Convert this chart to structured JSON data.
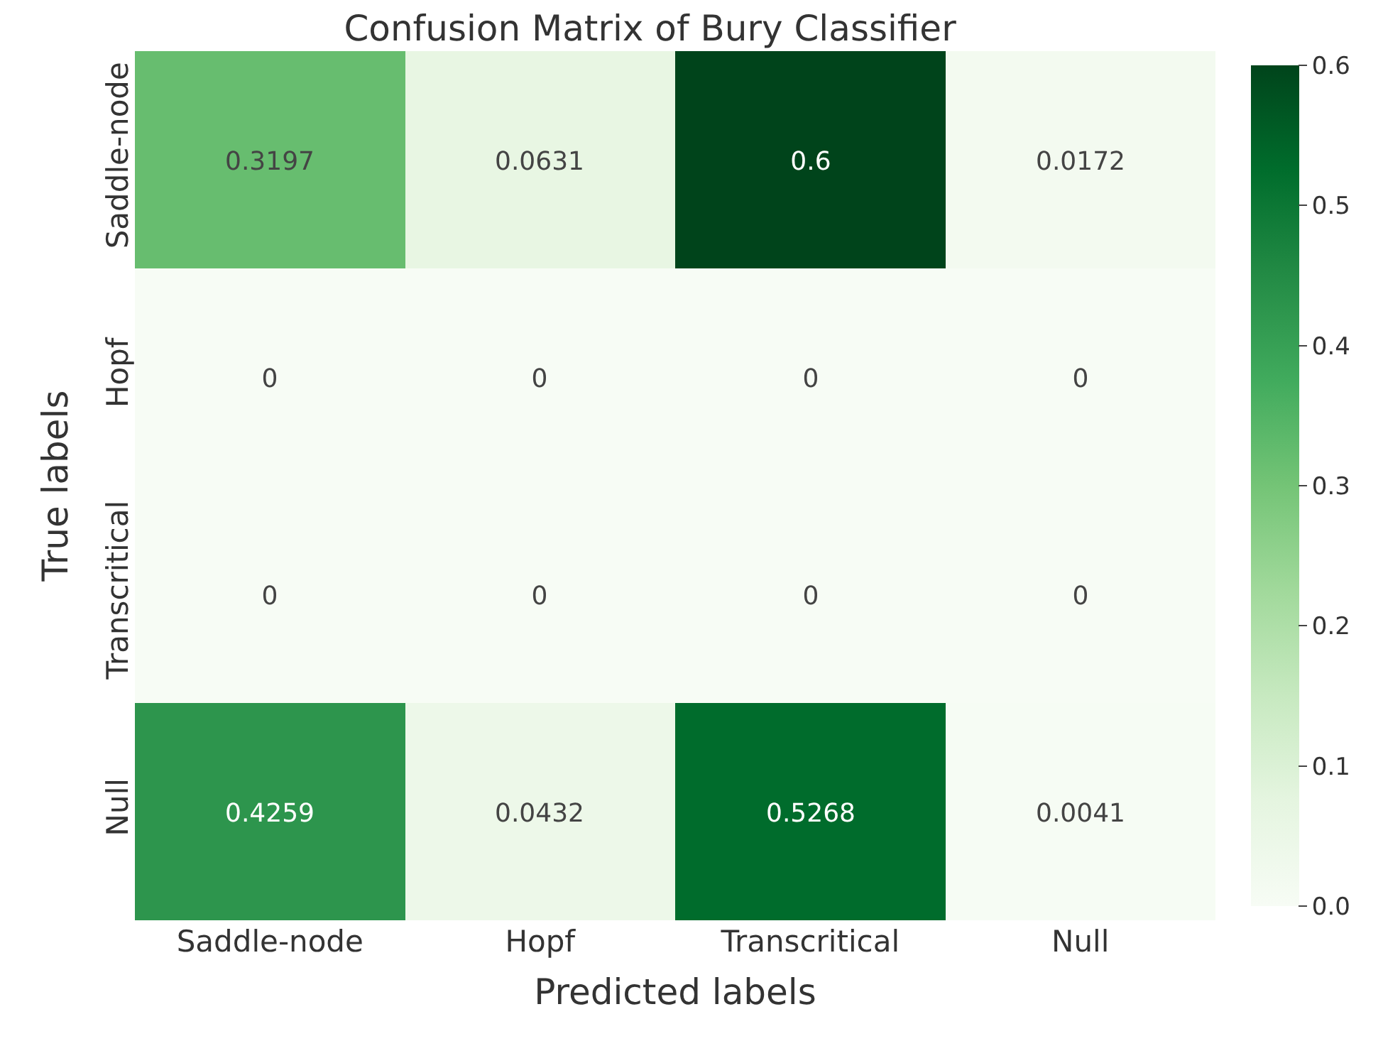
{
  "chart_data": {
    "type": "heatmap",
    "title": "Confusion Matrix of Bury Classifier",
    "xlabel": "Predicted labels",
    "ylabel": "True labels",
    "categories": [
      "Saddle-node",
      "Hopf",
      "Transcritical",
      "Null"
    ],
    "y_categories": [
      "Saddle-node",
      "Hopf",
      "Transcritical",
      "Null"
    ],
    "cells": [
      [
        0.3197,
        0.0631,
        0.6,
        0.0172
      ],
      [
        0,
        0,
        0,
        0
      ],
      [
        0,
        0,
        0,
        0
      ],
      [
        0.4259,
        0.0432,
        0.5268,
        0.0041
      ]
    ],
    "data_labels": true,
    "clim": [
      0,
      0.6
    ],
    "cticks": [
      {
        "value": 0,
        "label": "0.0"
      },
      {
        "value": 0.1,
        "label": "0.1"
      },
      {
        "value": 0.2,
        "label": "0.2"
      },
      {
        "value": 0.3,
        "label": "0.3"
      },
      {
        "value": 0.4,
        "label": "0.4"
      },
      {
        "value": 0.5,
        "label": "0.5"
      },
      {
        "value": 0.6,
        "label": "0.6"
      }
    ]
  }
}
